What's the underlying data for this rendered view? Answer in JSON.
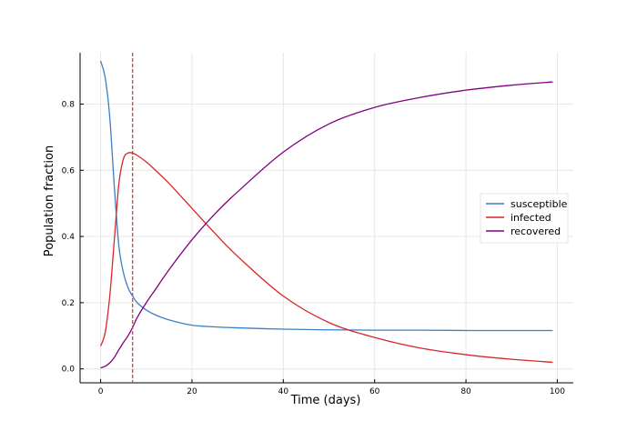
{
  "chart_data": {
    "type": "line",
    "title": "",
    "xlabel": "Time (days)",
    "ylabel": "Population fraction",
    "xlim": [
      -4.5,
      103.5
    ],
    "ylim": [
      -0.042,
      0.955
    ],
    "xticks": [
      0,
      20,
      40,
      60,
      80,
      100
    ],
    "yticks": [
      0.0,
      0.2,
      0.4,
      0.6,
      0.8
    ],
    "xtick_labels": [
      "0",
      "20",
      "40",
      "60",
      "80",
      "100"
    ],
    "ytick_labels": [
      "0.0",
      "0.2",
      "0.4",
      "0.6",
      "0.8"
    ],
    "grid": true,
    "legend_position": "right",
    "vline": {
      "x": 7,
      "color": "#e03030",
      "style": "dashed"
    },
    "series": [
      {
        "name": "susceptible",
        "color": "#3b7fc4",
        "x": [
          0,
          1,
          2,
          3,
          4,
          5,
          6,
          7,
          8,
          10,
          12,
          15,
          20,
          25,
          30,
          40,
          50,
          60,
          70,
          80,
          90,
          99
        ],
        "y": [
          0.93,
          0.88,
          0.76,
          0.55,
          0.37,
          0.29,
          0.245,
          0.22,
          0.2,
          0.178,
          0.163,
          0.148,
          0.132,
          0.127,
          0.124,
          0.12,
          0.118,
          0.117,
          0.117,
          0.116,
          0.116,
          0.116
        ]
      },
      {
        "name": "infected",
        "color": "#d62728",
        "x": [
          0,
          1,
          2,
          3,
          4,
          5,
          6,
          7,
          8,
          10,
          12,
          15,
          20,
          25,
          30,
          40,
          50,
          60,
          70,
          80,
          90,
          99
        ],
        "y": [
          0.069,
          0.11,
          0.22,
          0.39,
          0.56,
          0.635,
          0.652,
          0.652,
          0.645,
          0.625,
          0.6,
          0.56,
          0.485,
          0.41,
          0.34,
          0.22,
          0.14,
          0.095,
          0.063,
          0.043,
          0.029,
          0.02
        ]
      },
      {
        "name": "recovered",
        "color": "#800080",
        "x": [
          0,
          1,
          2,
          3,
          4,
          5,
          6,
          7,
          8,
          10,
          12,
          15,
          20,
          25,
          30,
          40,
          50,
          60,
          70,
          80,
          90,
          99
        ],
        "y": [
          0.003,
          0.008,
          0.018,
          0.035,
          0.058,
          0.08,
          0.1,
          0.125,
          0.155,
          0.2,
          0.24,
          0.3,
          0.39,
          0.468,
          0.535,
          0.655,
          0.74,
          0.79,
          0.82,
          0.842,
          0.857,
          0.867
        ]
      }
    ]
  }
}
